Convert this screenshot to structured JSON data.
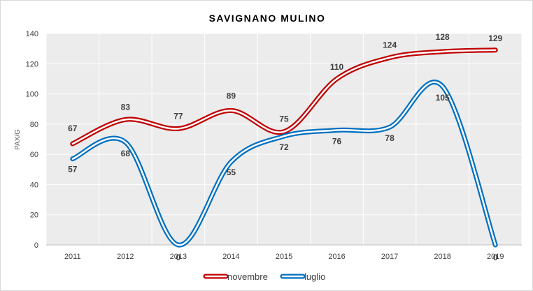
{
  "chart_data": {
    "type": "line",
    "title": "SAVIGNANO MULINO",
    "xlabel": "",
    "ylabel": "PAX/G",
    "x": [
      "2011",
      "2012",
      "2013",
      "2014",
      "2015",
      "2016",
      "2017",
      "2018",
      "2019"
    ],
    "ylim": [
      0,
      140
    ],
    "yticks": [
      0,
      20,
      40,
      60,
      80,
      100,
      120,
      140
    ],
    "grid": true,
    "smooth": true,
    "legend_position": "bottom",
    "series": [
      {
        "name": "novembre",
        "color": "#c00000",
        "values": [
          67,
          83,
          77,
          89,
          75,
          110,
          124,
          128,
          129
        ]
      },
      {
        "name": "luglio",
        "color": "#0070c0",
        "values": [
          57,
          68,
          0,
          55,
          72,
          76,
          78,
          105,
          0
        ]
      }
    ]
  }
}
